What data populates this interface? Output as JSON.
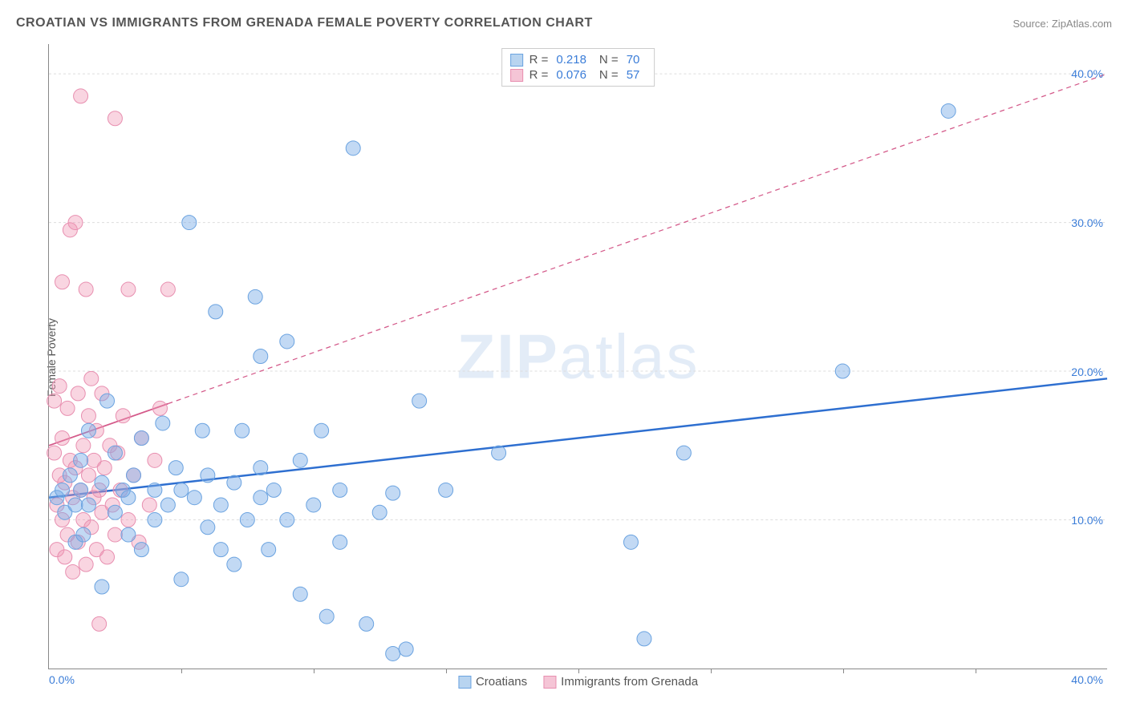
{
  "title": "CROATIAN VS IMMIGRANTS FROM GRENADA FEMALE POVERTY CORRELATION CHART",
  "source": "Source: ZipAtlas.com",
  "ylabel": "Female Poverty",
  "watermark_bold": "ZIP",
  "watermark_light": "atlas",
  "chart": {
    "type": "scatter",
    "xlim": [
      0,
      40
    ],
    "ylim": [
      0,
      42
    ],
    "x_ticks_labeled": {
      "0": "0.0%",
      "40": "40.0%"
    },
    "x_tick_marks": [
      5,
      10,
      15,
      20,
      25,
      30,
      35
    ],
    "y_ticks": {
      "10": "10.0%",
      "20": "20.0%",
      "30": "30.0%",
      "40": "40.0%"
    },
    "grid_color": "#dddddd",
    "background_color": "#ffffff",
    "axis_label_color": "#3b7dd8",
    "series": [
      {
        "name": "Croatians",
        "color_fill": "rgba(120,170,230,0.45)",
        "color_stroke": "#6ba3e0",
        "swatch_fill": "#b8d4f0",
        "swatch_stroke": "#6ba3e0",
        "marker_radius": 9,
        "R": "0.218",
        "N": "70",
        "trend": {
          "x1": 0,
          "y1": 11.5,
          "x2": 40,
          "y2": 19.5,
          "solid_end_x": 40,
          "color": "#2e6fd0",
          "width": 2.5
        },
        "points": [
          [
            0.3,
            11.5
          ],
          [
            0.5,
            12
          ],
          [
            0.6,
            10.5
          ],
          [
            0.8,
            13
          ],
          [
            1,
            11
          ],
          [
            1,
            8.5
          ],
          [
            1.2,
            14
          ],
          [
            1.2,
            12
          ],
          [
            1.3,
            9.0
          ],
          [
            1.5,
            11
          ],
          [
            1.5,
            16
          ],
          [
            2,
            12.5
          ],
          [
            2,
            5.5
          ],
          [
            2.2,
            18
          ],
          [
            2.5,
            10.5
          ],
          [
            2.5,
            14.5
          ],
          [
            2.8,
            12
          ],
          [
            3,
            9
          ],
          [
            3,
            11.5
          ],
          [
            3.2,
            13
          ],
          [
            3.5,
            15.5
          ],
          [
            3.5,
            8
          ],
          [
            4,
            12
          ],
          [
            4,
            10
          ],
          [
            4.3,
            16.5
          ],
          [
            4.5,
            11
          ],
          [
            4.8,
            13.5
          ],
          [
            5,
            12
          ],
          [
            5,
            6
          ],
          [
            5.3,
            30
          ],
          [
            5.5,
            11.5
          ],
          [
            5.8,
            16
          ],
          [
            6,
            9.5
          ],
          [
            6,
            13
          ],
          [
            6.3,
            24
          ],
          [
            6.5,
            11
          ],
          [
            6.5,
            8
          ],
          [
            7,
            12.5
          ],
          [
            7,
            7
          ],
          [
            7.3,
            16
          ],
          [
            7.5,
            10
          ],
          [
            7.8,
            25
          ],
          [
            8,
            11.5
          ],
          [
            8,
            13.5
          ],
          [
            8.3,
            8.0
          ],
          [
            8.5,
            12
          ],
          [
            9,
            22
          ],
          [
            9,
            10
          ],
          [
            9.5,
            5
          ],
          [
            9.5,
            14
          ],
          [
            10,
            11
          ],
          [
            10.3,
            16
          ],
          [
            10.5,
            3.5
          ],
          [
            11,
            12
          ],
          [
            11,
            8.5
          ],
          [
            11.5,
            35
          ],
          [
            12,
            3
          ],
          [
            12.5,
            10.5
          ],
          [
            13,
            1
          ],
          [
            13,
            11.8
          ],
          [
            13.5,
            1.3
          ],
          [
            14,
            18
          ],
          [
            15,
            12
          ],
          [
            17,
            14.5
          ],
          [
            22,
            8.5
          ],
          [
            22.5,
            2
          ],
          [
            24,
            14.5
          ],
          [
            30,
            20
          ],
          [
            34,
            37.5
          ],
          [
            8,
            21
          ]
        ]
      },
      {
        "name": "Immigrants from Grenada",
        "color_fill": "rgba(240,150,180,0.40)",
        "color_stroke": "#e88fb0",
        "swatch_fill": "#f5c5d6",
        "swatch_stroke": "#e88fb0",
        "marker_radius": 9,
        "R": "0.076",
        "N": "57",
        "trend": {
          "x1": 0,
          "y1": 15,
          "x2": 40,
          "y2": 40,
          "solid_end_x": 4.5,
          "color": "#d45a8a",
          "width": 1.8
        },
        "points": [
          [
            0.2,
            14.5
          ],
          [
            0.2,
            18
          ],
          [
            0.3,
            11
          ],
          [
            0.3,
            8
          ],
          [
            0.4,
            13
          ],
          [
            0.4,
            19
          ],
          [
            0.5,
            10
          ],
          [
            0.5,
            15.5
          ],
          [
            0.5,
            26
          ],
          [
            0.6,
            7.5
          ],
          [
            0.6,
            12.5
          ],
          [
            0.7,
            17.5
          ],
          [
            0.7,
            9
          ],
          [
            0.8,
            14
          ],
          [
            0.8,
            29.5
          ],
          [
            0.9,
            11.5
          ],
          [
            0.9,
            6.5
          ],
          [
            1.0,
            30
          ],
          [
            1.0,
            13.5
          ],
          [
            1.1,
            8.5
          ],
          [
            1.1,
            18.5
          ],
          [
            1.2,
            38.5
          ],
          [
            1.2,
            12
          ],
          [
            1.3,
            15
          ],
          [
            1.3,
            10
          ],
          [
            1.4,
            25.5
          ],
          [
            1.4,
            7
          ],
          [
            1.5,
            13
          ],
          [
            1.5,
            17
          ],
          [
            1.6,
            9.5
          ],
          [
            1.6,
            19.5
          ],
          [
            1.7,
            11.5
          ],
          [
            1.7,
            14
          ],
          [
            1.8,
            8
          ],
          [
            1.8,
            16
          ],
          [
            1.9,
            12
          ],
          [
            1.9,
            3
          ],
          [
            2.0,
            10.5
          ],
          [
            2.0,
            18.5
          ],
          [
            2.1,
            13.5
          ],
          [
            2.2,
            7.5
          ],
          [
            2.3,
            15
          ],
          [
            2.4,
            11
          ],
          [
            2.5,
            37
          ],
          [
            2.5,
            9
          ],
          [
            2.6,
            14.5
          ],
          [
            2.7,
            12
          ],
          [
            2.8,
            17
          ],
          [
            3.0,
            25.5
          ],
          [
            3.0,
            10
          ],
          [
            3.2,
            13
          ],
          [
            3.4,
            8.5
          ],
          [
            3.5,
            15.5
          ],
          [
            3.8,
            11
          ],
          [
            4.0,
            14
          ],
          [
            4.2,
            17.5
          ],
          [
            4.5,
            25.5
          ]
        ]
      }
    ]
  },
  "legend": {
    "series1_label": "Croatians",
    "series2_label": "Immigrants from Grenada"
  },
  "stats_labels": {
    "R": "R =",
    "N": "N ="
  }
}
